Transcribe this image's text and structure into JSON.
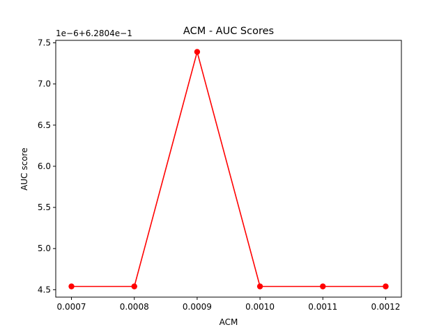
{
  "chart_data": {
    "type": "line",
    "title": "ACM  -  AUC Scores",
    "xlabel": "ACM",
    "ylabel": "AUC score",
    "y_offset_text": "1e−6+6.2804e−1",
    "x": [
      0.0007,
      0.0008,
      0.0009,
      0.001,
      0.0011,
      0.0012
    ],
    "x_tick_labels": [
      "0.0007",
      "0.0008",
      "0.0009",
      "0.0010",
      "0.0011",
      "0.0012"
    ],
    "y_ticks": [
      4.5,
      5.0,
      5.5,
      6.0,
      6.5,
      7.0,
      7.5
    ],
    "y_tick_labels": [
      "4.5",
      "5.0",
      "5.5",
      "6.0",
      "6.5",
      "7.0",
      "7.5"
    ],
    "xlim": [
      0.000675,
      0.001225
    ],
    "ylim": [
      4.41,
      7.53
    ],
    "grid": false,
    "series": [
      {
        "color": "#ff0000",
        "marker": "circle",
        "values": [
          4.54,
          4.54,
          7.39,
          4.54,
          4.54,
          4.54
        ]
      }
    ]
  }
}
